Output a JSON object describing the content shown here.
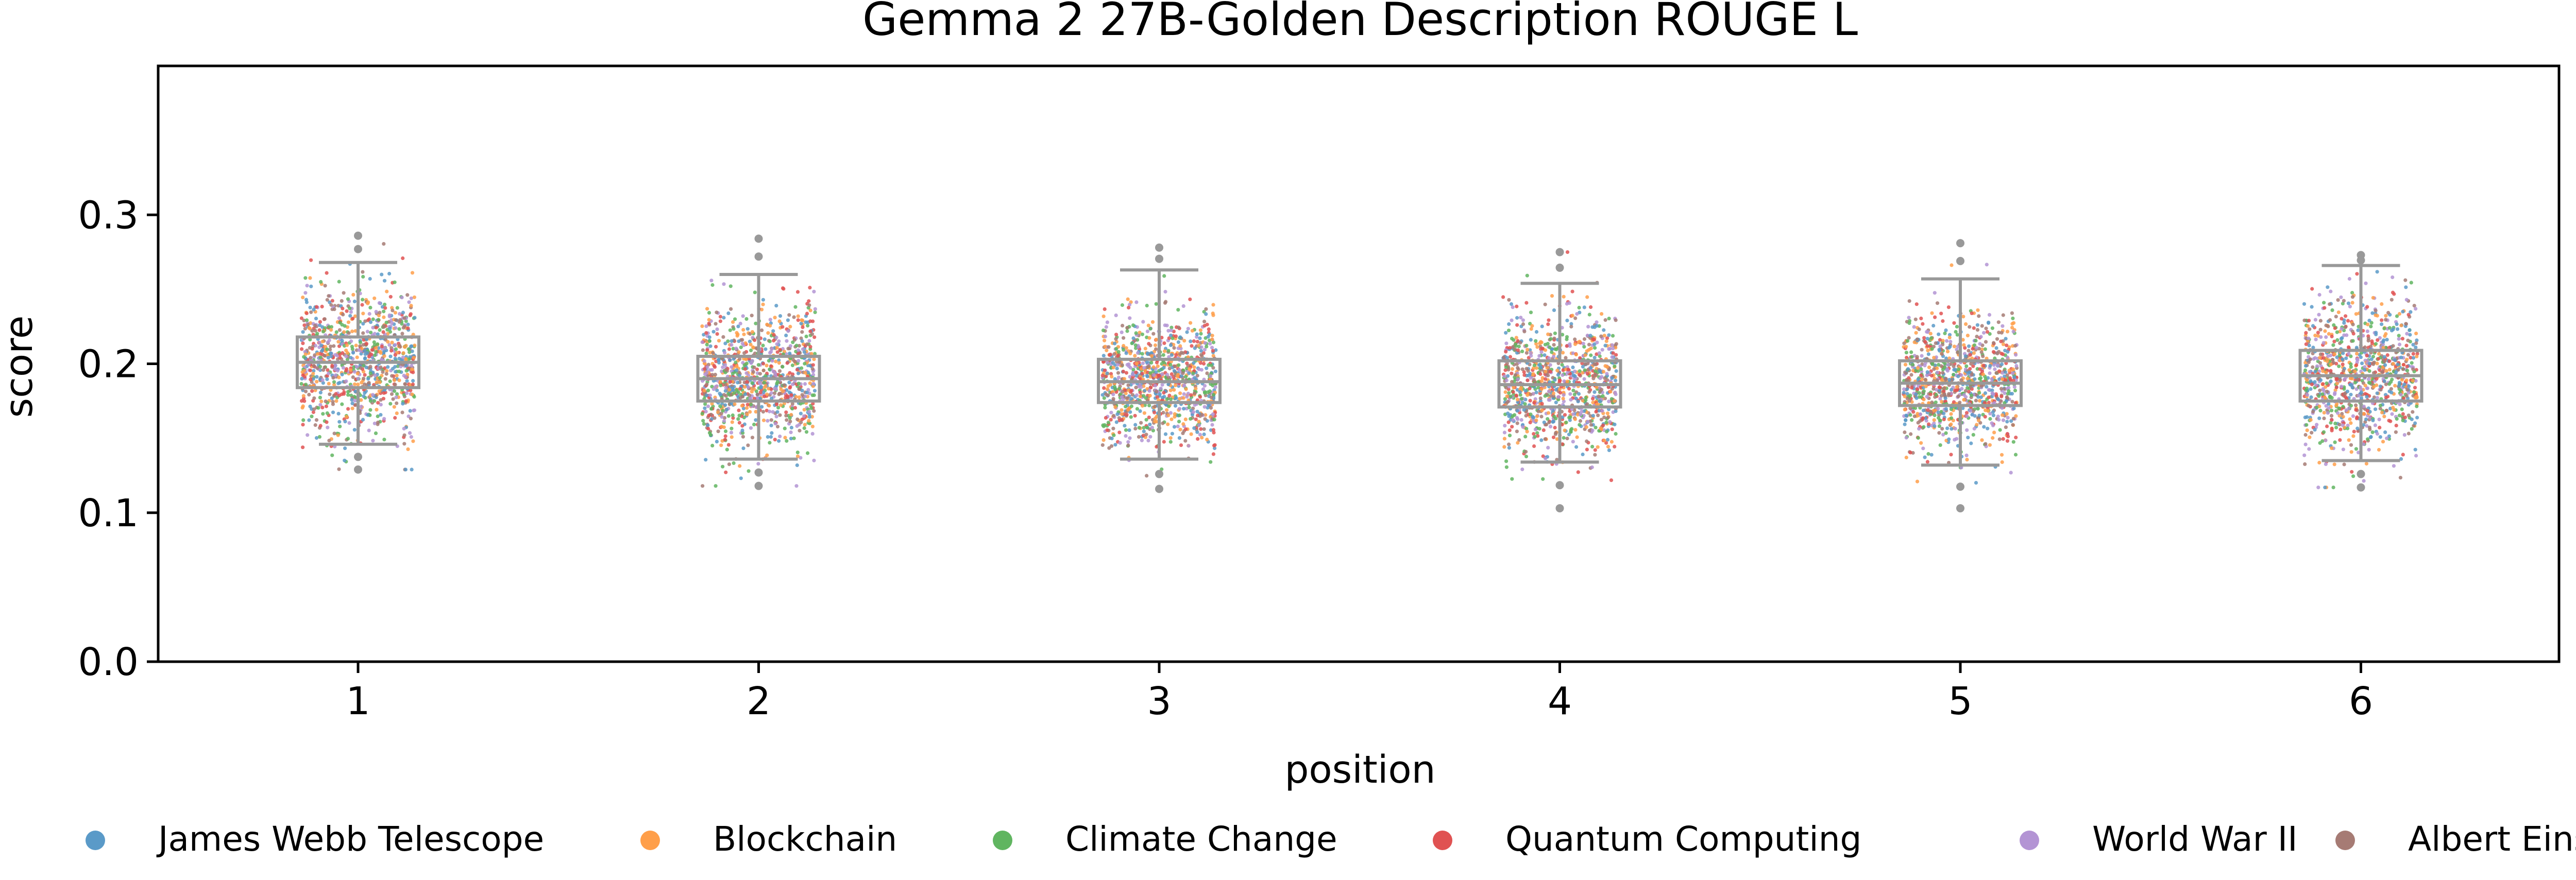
{
  "chart_data": {
    "type": "scatter",
    "subtype": "box-strip",
    "title": "Gemma 2 27B-Golden Description ROUGE L",
    "xlabel": "position",
    "ylabel": "score",
    "categories": [
      "1",
      "2",
      "3",
      "4",
      "5",
      "6"
    ],
    "yticks": [
      "0.0",
      "0.1",
      "0.2",
      "0.3"
    ],
    "ylim": [
      0,
      0.4
    ],
    "grid": false,
    "legend_position": "bottom",
    "box_color": "#999999",
    "boxes": [
      {
        "position": "1",
        "q1": 0.184,
        "median": 0.201,
        "q3": 0.218,
        "whisker_low": 0.146,
        "whisker_high": 0.268,
        "max_outlier": 0.286,
        "min_outlier": 0.129
      },
      {
        "position": "2",
        "q1": 0.175,
        "median": 0.19,
        "q3": 0.205,
        "whisker_low": 0.136,
        "whisker_high": 0.26,
        "max_outlier": 0.284,
        "min_outlier": 0.118
      },
      {
        "position": "3",
        "q1": 0.174,
        "median": 0.188,
        "q3": 0.203,
        "whisker_low": 0.136,
        "whisker_high": 0.263,
        "max_outlier": 0.278,
        "min_outlier": 0.116
      },
      {
        "position": "4",
        "q1": 0.171,
        "median": 0.186,
        "q3": 0.202,
        "whisker_low": 0.134,
        "whisker_high": 0.254,
        "max_outlier": 0.275,
        "min_outlier": 0.103
      },
      {
        "position": "5",
        "q1": 0.172,
        "median": 0.187,
        "q3": 0.202,
        "whisker_low": 0.132,
        "whisker_high": 0.257,
        "max_outlier": 0.281,
        "min_outlier": 0.103
      },
      {
        "position": "6",
        "q1": 0.175,
        "median": 0.192,
        "q3": 0.209,
        "whisker_low": 0.135,
        "whisker_high": 0.266,
        "max_outlier": 0.273,
        "min_outlier": 0.117
      }
    ],
    "series": [
      {
        "name": "James Webb Telescope",
        "color": "#5a9ac8"
      },
      {
        "name": "Blockchain",
        "color": "#ff9f4a"
      },
      {
        "name": "Climate Change",
        "color": "#60b560"
      },
      {
        "name": "Quantum Computing",
        "color": "#e05252"
      },
      {
        "name": "World War II",
        "color": "#b394d4"
      },
      {
        "name": "Albert Einstein",
        "color": "#a67b74"
      }
    ]
  }
}
